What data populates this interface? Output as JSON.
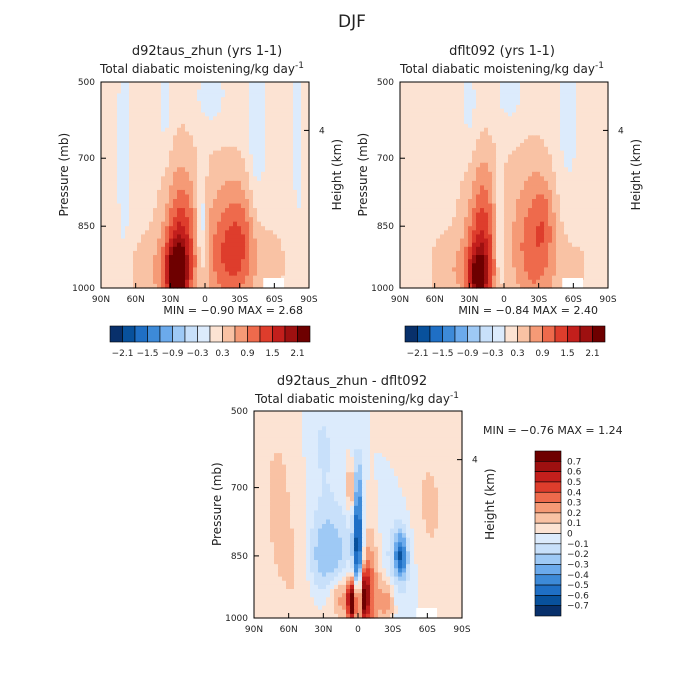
{
  "figure": {
    "title": "DJF"
  },
  "chart_data": [
    {
      "type": "heatmap",
      "title": "d92taus_zhun (yrs 1-1)",
      "subtitle": "Total diabatic moistening/kg day",
      "subtitle_sup": "-1",
      "ylabel": "Pressure (mb)",
      "ylabel_right": "Height (km)",
      "x_ticks": [
        "90N",
        "60N",
        "30N",
        "0",
        "30S",
        "60S",
        "90S"
      ],
      "y_ticks": [
        "500",
        "700",
        "850",
        "1000"
      ],
      "right_ticks": [
        "4"
      ],
      "stats_text": "MIN =  −0.90    MAX =    2.68",
      "colorbar_labels": [
        "−2.1",
        "−1.5",
        "−0.9",
        "−0.3",
        "0.3",
        "0.9",
        "1.5",
        "2.1"
      ],
      "colorbar_colors": [
        "#08306b",
        "#08519c",
        "#1f6fc5",
        "#3d8ad8",
        "#6baaec",
        "#9ec9f5",
        "#c8e0fa",
        "#dcebfc",
        "#fce3d3",
        "#f9c2a4",
        "#f59a76",
        "#ee6a4c",
        "#de3d2c",
        "#c31f1c",
        "#9e1010",
        "#6e0000"
      ],
      "features": [
        {
          "lat": 0,
          "p": 750,
          "sx": 90,
          "sy": 320,
          "v": 0.25
        },
        {
          "lat": 22,
          "p": 930,
          "sx": 10,
          "sy": 100,
          "v": 1.2
        },
        {
          "lat": 25,
          "p": 965,
          "sx": 6,
          "sy": 45,
          "v": 1.5
        },
        {
          "lat": 20,
          "p": 850,
          "sx": 8,
          "sy": 130,
          "v": 0.4
        },
        {
          "lat": -20,
          "p": 920,
          "sx": 14,
          "sy": 110,
          "v": 1.0
        },
        {
          "lat": -32,
          "p": 870,
          "sx": 8,
          "sy": 80,
          "v": 0.35
        },
        {
          "lat": 45,
          "p": 960,
          "sx": 15,
          "sy": 60,
          "v": 0.35
        },
        {
          "lat": -55,
          "p": 950,
          "sx": 20,
          "sy": 70,
          "v": 0.2
        },
        {
          "lat": 3,
          "p": 860,
          "sx": 3,
          "sy": 90,
          "v": -0.7
        },
        {
          "lat": 35,
          "p": 560,
          "sx": 4,
          "sy": 90,
          "v": -0.35
        },
        {
          "lat": -5,
          "p": 540,
          "sx": 10,
          "sy": 60,
          "v": -0.35
        },
        {
          "lat": -45,
          "p": 600,
          "sx": 6,
          "sy": 150,
          "v": -0.5
        },
        {
          "lat": 70,
          "p": 700,
          "sx": 5,
          "sy": 200,
          "v": -0.3
        },
        {
          "lat": -80,
          "p": 700,
          "sx": 5,
          "sy": 250,
          "v": -0.2
        }
      ]
    },
    {
      "type": "heatmap",
      "title": "dflt092 (yrs 1-1)",
      "subtitle": "Total diabatic moistening/kg day",
      "subtitle_sup": "-1",
      "ylabel": "Pressure (mb)",
      "ylabel_right": "Height (km)",
      "x_ticks": [
        "90N",
        "60N",
        "30N",
        "0",
        "30S",
        "60S",
        "90S"
      ],
      "y_ticks": [
        "500",
        "700",
        "850",
        "1000"
      ],
      "right_ticks": [
        "4"
      ],
      "stats_text": "MIN =  −0.84    MAX =    2.40",
      "colorbar_labels": [
        "−2.1",
        "−1.5",
        "−0.9",
        "−0.3",
        "0.3",
        "0.9",
        "1.5",
        "2.1"
      ],
      "colorbar_colors": [
        "#08306b",
        "#08519c",
        "#1f6fc5",
        "#3d8ad8",
        "#6baaec",
        "#9ec9f5",
        "#c8e0fa",
        "#dcebfc",
        "#fce3d3",
        "#f9c2a4",
        "#f59a76",
        "#ee6a4c",
        "#de3d2c",
        "#c31f1c",
        "#9e1010",
        "#6e0000"
      ],
      "features": [
        {
          "lat": 0,
          "p": 760,
          "sx": 90,
          "sy": 320,
          "v": 0.25
        },
        {
          "lat": 20,
          "p": 930,
          "sx": 10,
          "sy": 110,
          "v": 1.05
        },
        {
          "lat": 22,
          "p": 970,
          "sx": 6,
          "sy": 40,
          "v": 1.3
        },
        {
          "lat": 18,
          "p": 840,
          "sx": 7,
          "sy": 120,
          "v": 0.4
        },
        {
          "lat": -25,
          "p": 900,
          "sx": 13,
          "sy": 120,
          "v": 0.85
        },
        {
          "lat": -35,
          "p": 830,
          "sx": 6,
          "sy": 60,
          "v": 0.35
        },
        {
          "lat": 45,
          "p": 960,
          "sx": 14,
          "sy": 60,
          "v": 0.35
        },
        {
          "lat": -55,
          "p": 950,
          "sx": 20,
          "sy": 70,
          "v": 0.2
        },
        {
          "lat": 4,
          "p": 860,
          "sx": 2.5,
          "sy": 90,
          "v": -0.7
        },
        {
          "lat": 30,
          "p": 570,
          "sx": 5,
          "sy": 90,
          "v": -0.3
        },
        {
          "lat": -5,
          "p": 540,
          "sx": 10,
          "sy": 60,
          "v": -0.3
        },
        {
          "lat": -55,
          "p": 620,
          "sx": 8,
          "sy": 150,
          "v": -0.3
        }
      ]
    },
    {
      "type": "heatmap",
      "title": "d92taus_zhun - dflt092",
      "subtitle": "Total diabatic moistening/kg day",
      "subtitle_sup": "-1",
      "ylabel": "Pressure (mb)",
      "ylabel_right": "Height (km)",
      "x_ticks": [
        "90N",
        "60N",
        "30N",
        "0",
        "30S",
        "60S",
        "90S"
      ],
      "y_ticks": [
        "500",
        "700",
        "850",
        "1000"
      ],
      "right_ticks": [
        "4"
      ],
      "stats_text": "MIN =   −0.76    MAX =    1.24",
      "colorbar_labels": [
        "0.7",
        "0.6",
        "0.5",
        "0.4",
        "0.3",
        "0.2",
        "0.1",
        "0",
        "−0.1",
        "−0.2",
        "−0.3",
        "−0.4",
        "−0.5",
        "−0.6",
        "−0.7"
      ],
      "colorbar_colors": [
        "#6e0000",
        "#9e1010",
        "#c31f1c",
        "#de3d2c",
        "#ee6a4c",
        "#f59a76",
        "#f9c2a4",
        "#fce3d3",
        "#dcebfc",
        "#c8e0fa",
        "#9ec9f5",
        "#6baaec",
        "#3d8ad8",
        "#1f6fc5",
        "#08519c",
        "#08306b"
      ],
      "features": [
        {
          "lat": 0,
          "p": 850,
          "sx": 3,
          "sy": 90,
          "v": -0.65
        },
        {
          "lat": 0,
          "p": 700,
          "sx": 3,
          "sy": 80,
          "v": -0.25
        },
        {
          "lat": 5,
          "p": 960,
          "sx": 3,
          "sy": 40,
          "v": 0.8
        },
        {
          "lat": -5,
          "p": 950,
          "sx": 3,
          "sy": 45,
          "v": 0.6
        },
        {
          "lat": 6,
          "p": 700,
          "sx": 2.5,
          "sy": 40,
          "v": 0.3
        },
        {
          "lat": -10,
          "p": 930,
          "sx": 6,
          "sy": 90,
          "v": 0.4
        },
        {
          "lat": 15,
          "p": 950,
          "sx": 8,
          "sy": 40,
          "v": 0.3
        },
        {
          "lat": 20,
          "p": 850,
          "sx": 10,
          "sy": 80,
          "v": -0.25
        },
        {
          "lat": -37,
          "p": 850,
          "sx": 4,
          "sy": 35,
          "v": -0.5
        },
        {
          "lat": -35,
          "p": 870,
          "sx": 12,
          "sy": 100,
          "v": -0.15
        },
        {
          "lat": -25,
          "p": 960,
          "sx": 5,
          "sy": 40,
          "v": 0.3
        },
        {
          "lat": 35,
          "p": 850,
          "sx": 8,
          "sy": 70,
          "v": -0.2
        },
        {
          "lat": 50,
          "p": 900,
          "sx": 15,
          "sy": 120,
          "v": 0.1
        },
        {
          "lat": 70,
          "p": 700,
          "sx": 10,
          "sy": 150,
          "v": 0.12
        },
        {
          "lat": -60,
          "p": 750,
          "sx": 15,
          "sy": 150,
          "v": 0.12
        },
        {
          "lat": 30,
          "p": 600,
          "sx": 8,
          "sy": 100,
          "v": -0.12
        }
      ]
    }
  ]
}
